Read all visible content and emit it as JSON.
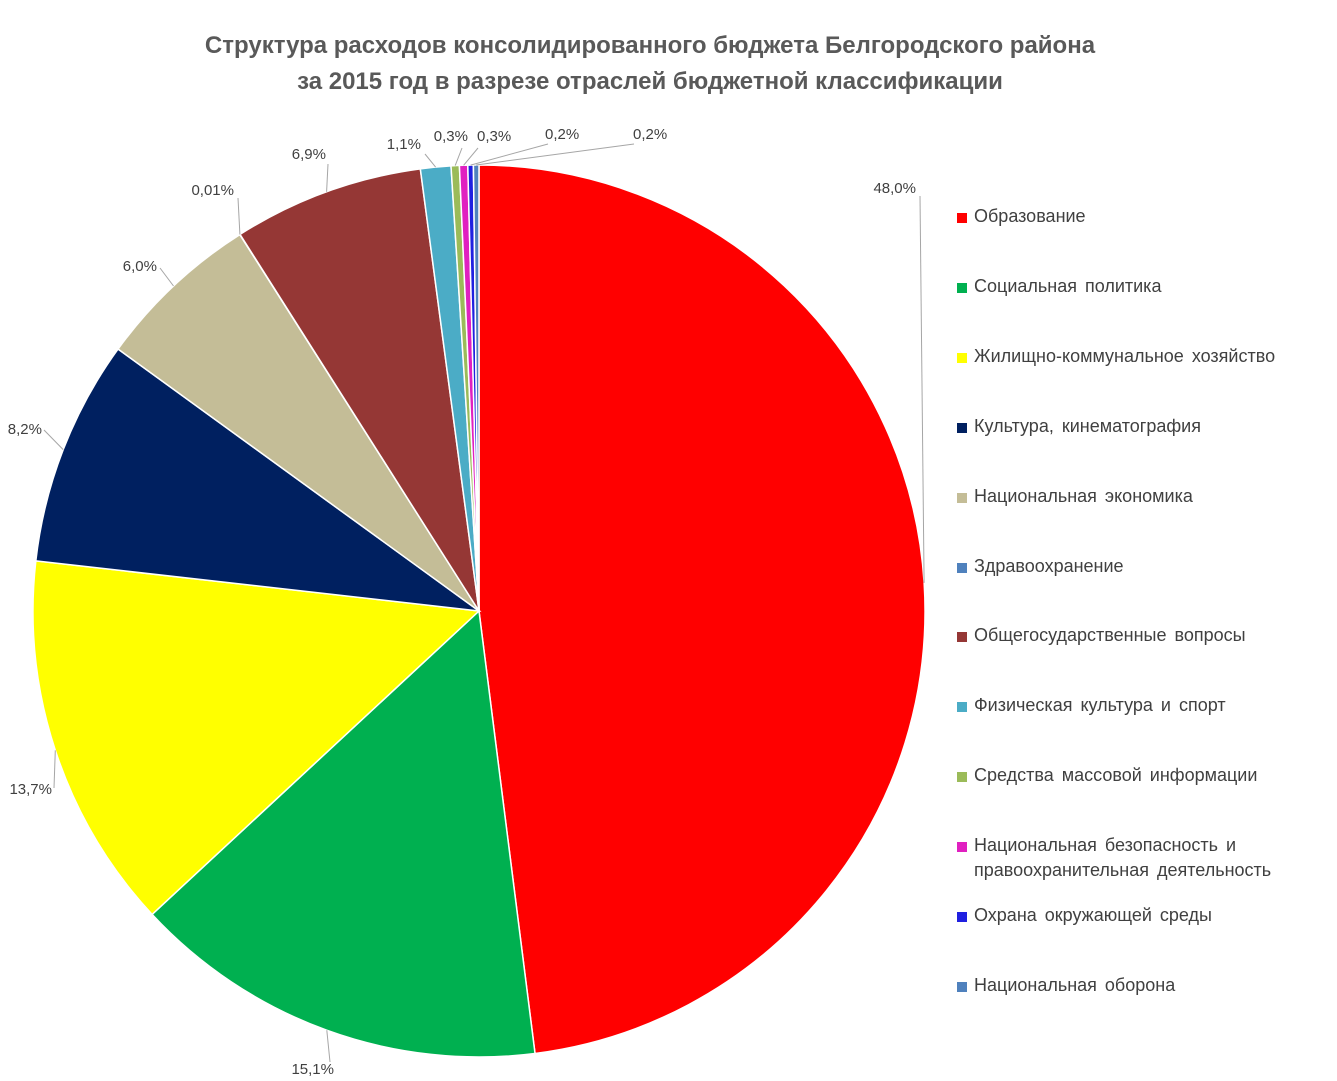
{
  "chart_data": {
    "type": "pie",
    "title_lines": [
      "Структура расходов консолидированного бюджета Белгородского района",
      "за 2015 год в разрезе отраслей бюджетной классификации"
    ],
    "slices": [
      {
        "name": "Образование",
        "value": 48.0,
        "label": "48,0%",
        "color": "#FF0000"
      },
      {
        "name": "Социальная политика",
        "value": 15.1,
        "label": "15,1%",
        "color": "#00B050"
      },
      {
        "name": "Жилищно-коммунальное хозяйство",
        "value": 13.7,
        "label": "13,7%",
        "color": "#FFFF00"
      },
      {
        "name": "Культура, кинематография",
        "value": 8.2,
        "label": "8,2%",
        "color": "#002060"
      },
      {
        "name": "Национальная экономика",
        "value": 6.0,
        "label": "6,0%",
        "color": "#C4BD97"
      },
      {
        "name": "Здравоохранение",
        "value": 0.01,
        "label": "0,01%",
        "color": "#4F81BD"
      },
      {
        "name": "Общегосударственные вопросы",
        "value": 6.9,
        "label": "6,9%",
        "color": "#953735"
      },
      {
        "name": "Физическая культура и спорт",
        "value": 1.1,
        "label": "1,1%",
        "color": "#4BACC6"
      },
      {
        "name": "Средства массовой информации",
        "value": 0.3,
        "label": "0,3%",
        "color": "#9BBB59"
      },
      {
        "name": "Национальная безопасность и правоохранительная деятельность",
        "value": 0.3,
        "label": "0,3%",
        "color": "#E020C0"
      },
      {
        "name": "Охрана окружающей среды",
        "value": 0.2,
        "label": "0,2%",
        "color": "#2020E0"
      },
      {
        "name": "Национальная оборона",
        "value": 0.2,
        "label": "0,2%",
        "color": "#4F81BD"
      }
    ],
    "legend": {
      "position": "right",
      "items": [
        {
          "lines": [
            "Образование"
          ]
        },
        {
          "lines": [
            "Социальная политика"
          ]
        },
        {
          "lines": [
            "Жилищно-коммунальное хозяйство"
          ]
        },
        {
          "lines": [
            "Культура, кинематография"
          ]
        },
        {
          "lines": [
            "Национальная экономика"
          ]
        },
        {
          "lines": [
            "Здравоохранение"
          ]
        },
        {
          "lines": [
            "Общегосударственные вопросы"
          ]
        },
        {
          "lines": [
            "Физическая культура и спорт"
          ]
        },
        {
          "lines": [
            "Средства массовой информации"
          ]
        },
        {
          "lines": [
            "Национальная безопасность и",
            "правоохранительная деятельность"
          ]
        },
        {
          "lines": [
            "Охрана окружающей среды"
          ]
        },
        {
          "lines": [
            "Национальная оборона"
          ]
        }
      ]
    }
  }
}
